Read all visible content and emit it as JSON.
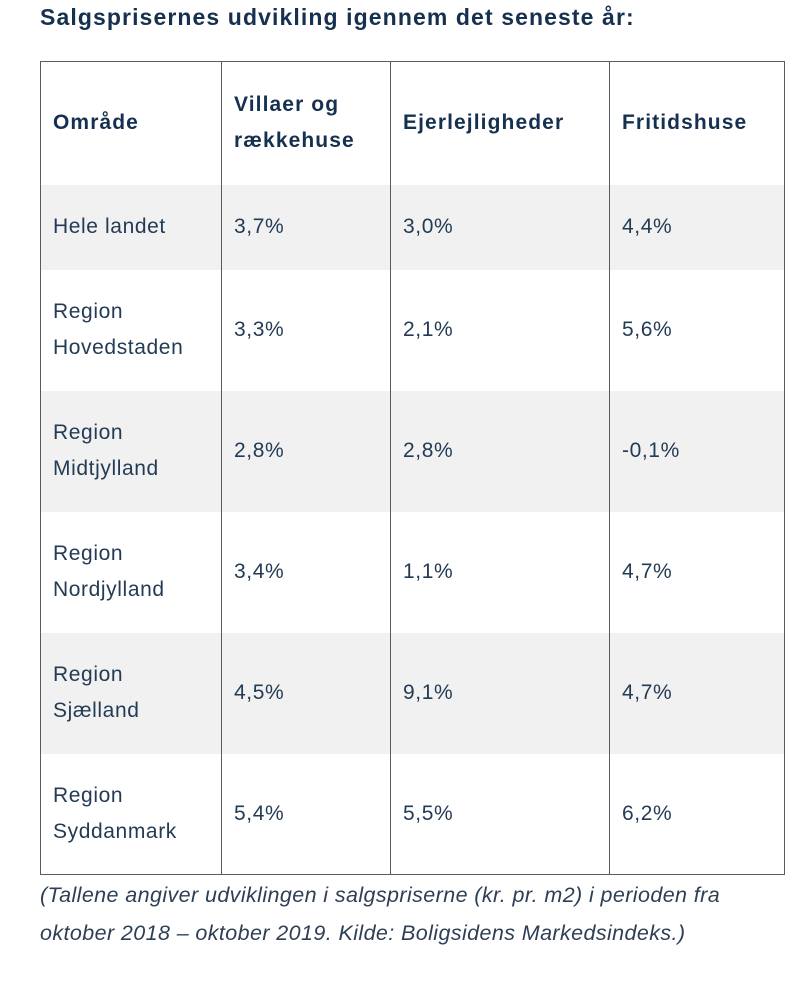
{
  "heading": "Salgsprisernes udvikling igennem det seneste år:",
  "table": {
    "headers": {
      "area": "Område",
      "villas_line1": "Villaer og",
      "villas_line2": "rækkehuse",
      "apartments": "Ejerlejligheder",
      "holiday_homes": "Fritidshuse"
    },
    "rows": [
      {
        "area_line1": "Hele landet",
        "area_line2": "",
        "villas": "3,7%",
        "apartments": "3,0%",
        "holiday_homes": "4,4%"
      },
      {
        "area_line1": "Region",
        "area_line2": "Hovedstaden",
        "villas": "3,3%",
        "apartments": "2,1%",
        "holiday_homes": "5,6%"
      },
      {
        "area_line1": "Region",
        "area_line2": "Midtjylland",
        "villas": "2,8%",
        "apartments": "2,8%",
        "holiday_homes": "-0,1%"
      },
      {
        "area_line1": "Region",
        "area_line2": "Nordjylland",
        "villas": "3,4%",
        "apartments": "1,1%",
        "holiday_homes": "4,7%"
      },
      {
        "area_line1": "Region",
        "area_line2": "Sjælland",
        "villas": "4,5%",
        "apartments": "9,1%",
        "holiday_homes": "4,7%"
      },
      {
        "area_line1": "Region",
        "area_line2": "Syddanmark",
        "villas": "5,4%",
        "apartments": "5,5%",
        "holiday_homes": "6,2%"
      }
    ]
  },
  "footnote": "(Tallene angiver udviklingen i salgspriserne (kr. pr. m2) i perioden fra oktober 2018 – oktober 2019. Kilde: Boligsidens Markedsindeks.)",
  "colors": {
    "text": "#16304f",
    "border": "#555c63",
    "shaded_row": "#f1f1f1"
  }
}
